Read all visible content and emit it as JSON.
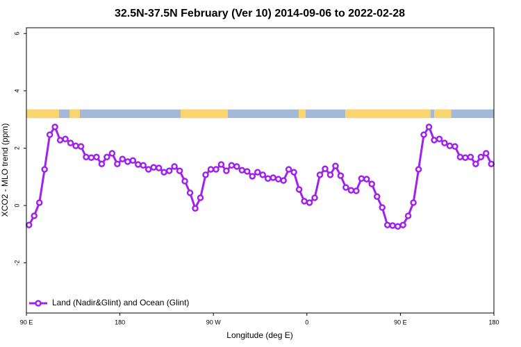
{
  "chart_data": {
    "type": "line",
    "title": "32.5N-37.5N February (Ver 10)   2014-09-06 to 2022-02-28",
    "x_label": "Longitude (deg E)",
    "y_label": "XCO2 - MLO trend (ppm)",
    "xlim": [
      90,
      540
    ],
    "ylim": [
      -3.75,
      6.2
    ],
    "xticks": [
      {
        "value": 90,
        "label": "90 E"
      },
      180,
      {
        "value": 270,
        "label": "90 W"
      },
      {
        "value": 360,
        "label": "0"
      },
      {
        "value": 450,
        "label": "90 E"
      },
      {
        "value": 540,
        "label": "180"
      }
    ],
    "yticks": [
      -2,
      0,
      2,
      4,
      6
    ],
    "legend": "bottom-left",
    "land_mask": {
      "ylim": [
        3.05,
        3.35
      ],
      "ocean_color": "#a4b8d8",
      "land_color": "#f9d56e",
      "land": [
        [
          90,
          121.4
        ],
        [
          131.5,
          141.5
        ],
        [
          238.4,
          283.9
        ],
        [
          352,
          358.8
        ],
        [
          396.9,
          479.1
        ],
        [
          482.5,
          499
        ]
      ]
    },
    "x": [
      92.5,
      97.5,
      102.5,
      107.5,
      112.5,
      117.5,
      122.5,
      127.5,
      132.5,
      137.5,
      142.5,
      147.5,
      152.5,
      157.5,
      162.5,
      167.5,
      172.5,
      177.5,
      182.5,
      187.5,
      192.5,
      197.5,
      202.5,
      207.5,
      212.5,
      217.5,
      222.5,
      227.5,
      232.5,
      237.5,
      242.5,
      247.5,
      252.5,
      257.5,
      262.5,
      267.5,
      272.5,
      277.5,
      282.5,
      287.5,
      292.5,
      297.5,
      302.5,
      307.5,
      312.5,
      317.5,
      322.5,
      327.5,
      332.5,
      337.5,
      342.5,
      347.5,
      352.5,
      357.5,
      362.5,
      367.5,
      372.5,
      377.5,
      382.5,
      387.5,
      392.5,
      397.5,
      402.5,
      407.5,
      412.5,
      417.5,
      422.5,
      427.5,
      432.5,
      437.5,
      442.5,
      447.5,
      452.5,
      457.5,
      462.5,
      467.5,
      472.5,
      477.5,
      482.5,
      487.5,
      492.5,
      497.5,
      502.5,
      507.5,
      512.5,
      517.5,
      522.5,
      527.5,
      532.5,
      537.5
    ],
    "series": [
      {
        "name": "Land (Nadir&Glint) and Ocean (Glint)",
        "color": "#a020f0",
        "values": [
          -0.68,
          -0.36,
          0.1,
          1.26,
          2.47,
          2.74,
          2.28,
          2.32,
          2.18,
          2.08,
          2.06,
          1.69,
          1.67,
          1.69,
          1.45,
          1.69,
          1.82,
          1.45,
          1.62,
          1.53,
          1.57,
          1.43,
          1.4,
          1.26,
          1.33,
          1.31,
          1.16,
          1.21,
          1.36,
          1.21,
          0.85,
          0.44,
          -0.1,
          0.27,
          1.07,
          1.26,
          1.26,
          1.43,
          1.21,
          1.4,
          1.36,
          1.23,
          1.19,
          1.02,
          1.16,
          1.07,
          0.94,
          0.97,
          0.92,
          0.87,
          1.26,
          1.16,
          0.56,
          0.15,
          0.1,
          0.27,
          1.07,
          1.28,
          1.07,
          1.38,
          1.04,
          0.63,
          0.53,
          0.51,
          0.94,
          0.92,
          0.75,
          0.31,
          -0.07,
          -0.68,
          -0.7,
          -0.73,
          -0.68,
          -0.36,
          0.1,
          1.26,
          2.47,
          2.74,
          2.28,
          2.32,
          2.18,
          2.08,
          2.06,
          1.69,
          1.67,
          1.69,
          1.45,
          1.69,
          1.82,
          1.45
        ]
      }
    ]
  }
}
